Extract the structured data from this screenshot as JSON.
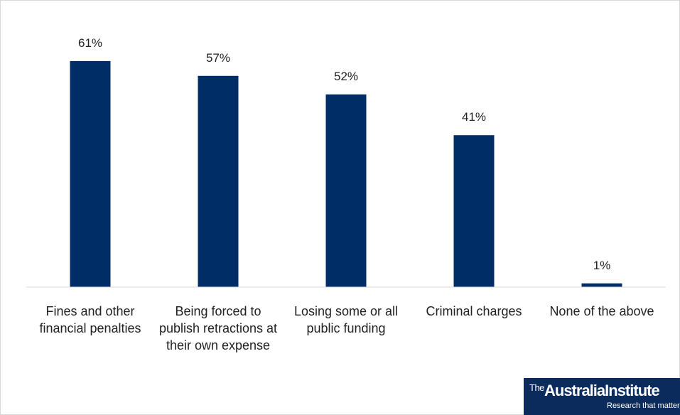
{
  "chart_data": {
    "type": "bar",
    "categories": [
      "Fines and other financial penalties",
      "Being forced to publish retractions at their own expense",
      "Losing some or all public funding",
      "Criminal charges",
      "None of the above"
    ],
    "values": [
      61,
      57,
      52,
      41,
      1
    ],
    "value_labels": [
      "61%",
      "57%",
      "52%",
      "41%",
      "1%"
    ],
    "color": "#002d66",
    "ylim": [
      0,
      70
    ]
  },
  "logo": {
    "prefix": "The",
    "name": "AustraliaInstitute",
    "tagline": "Research that matters"
  }
}
